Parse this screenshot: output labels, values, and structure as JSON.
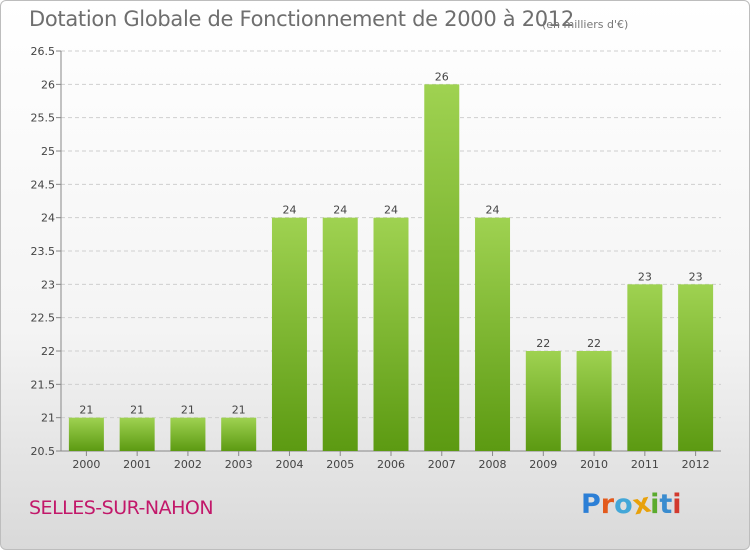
{
  "header": {
    "title": "Dotation Globale de Fonctionnement de 2000 à 2012",
    "unit": "(en milliers d'€)"
  },
  "footer": {
    "town": "SELLES-SUR-NAHON",
    "logo": "Proxiti"
  },
  "colors": {
    "bar_top": "#9fd251",
    "bar_bottom": "#5c9a12",
    "town": "#c2186a",
    "logo_letters": [
      "#2c7fd6",
      "#e35a1c",
      "#43a7d8",
      "#e8a10b",
      "#5aab2e",
      "#3a8ccf",
      "#d23a2e"
    ]
  },
  "chart_data": {
    "type": "bar",
    "categories": [
      "2000",
      "2001",
      "2002",
      "2003",
      "2004",
      "2005",
      "2006",
      "2007",
      "2008",
      "2009",
      "2010",
      "2011",
      "2012"
    ],
    "values": [
      21,
      21,
      21,
      21,
      24,
      24,
      24,
      26,
      24,
      22,
      22,
      23,
      23
    ],
    "value_labels": [
      "21",
      "21",
      "21",
      "21",
      "24",
      "24",
      "24",
      "26",
      "24",
      "22",
      "22",
      "23",
      "23"
    ],
    "yticks": [
      "20.5",
      "21",
      "21.5",
      "22",
      "22.5",
      "23",
      "23.5",
      "24",
      "24.5",
      "25",
      "25.5",
      "26",
      "26.5"
    ],
    "ylim": [
      20.5,
      26.5
    ],
    "grid": "horizontal dashed",
    "legend": "none"
  }
}
